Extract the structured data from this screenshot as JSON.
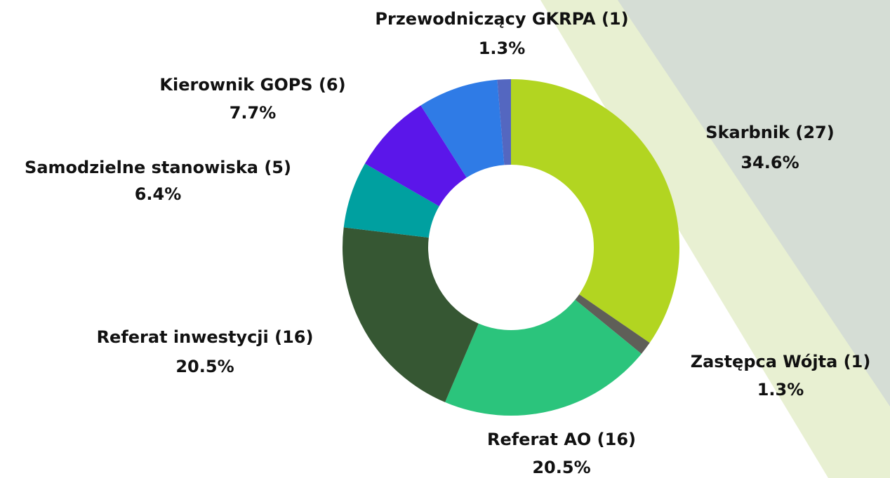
{
  "chart_data": {
    "type": "donut",
    "categories": [
      "Skarbnik (27)",
      "Zastępca Wójta (1)",
      "Referat AO (16)",
      "Referat inwestycji (16)",
      "Samodzielne stanowiska (5)",
      null,
      "Kierownik GOPS (6)",
      "Przewodniczący GKRPA (1)"
    ],
    "values": [
      34.6,
      1.3,
      20.5,
      20.5,
      6.4,
      7.7,
      7.7,
      1.3
    ],
    "value_labels": [
      "34.6%",
      "1.3%",
      "20.5%",
      "20.5%",
      "6.4%",
      null,
      "7.7%",
      "1.3%"
    ],
    "colors": [
      "#b2d521",
      "#5f5f58",
      "#2bc47c",
      "#365733",
      "#00a0a0",
      "#5b16ea",
      "#2f7be6",
      "#5467c0"
    ]
  }
}
